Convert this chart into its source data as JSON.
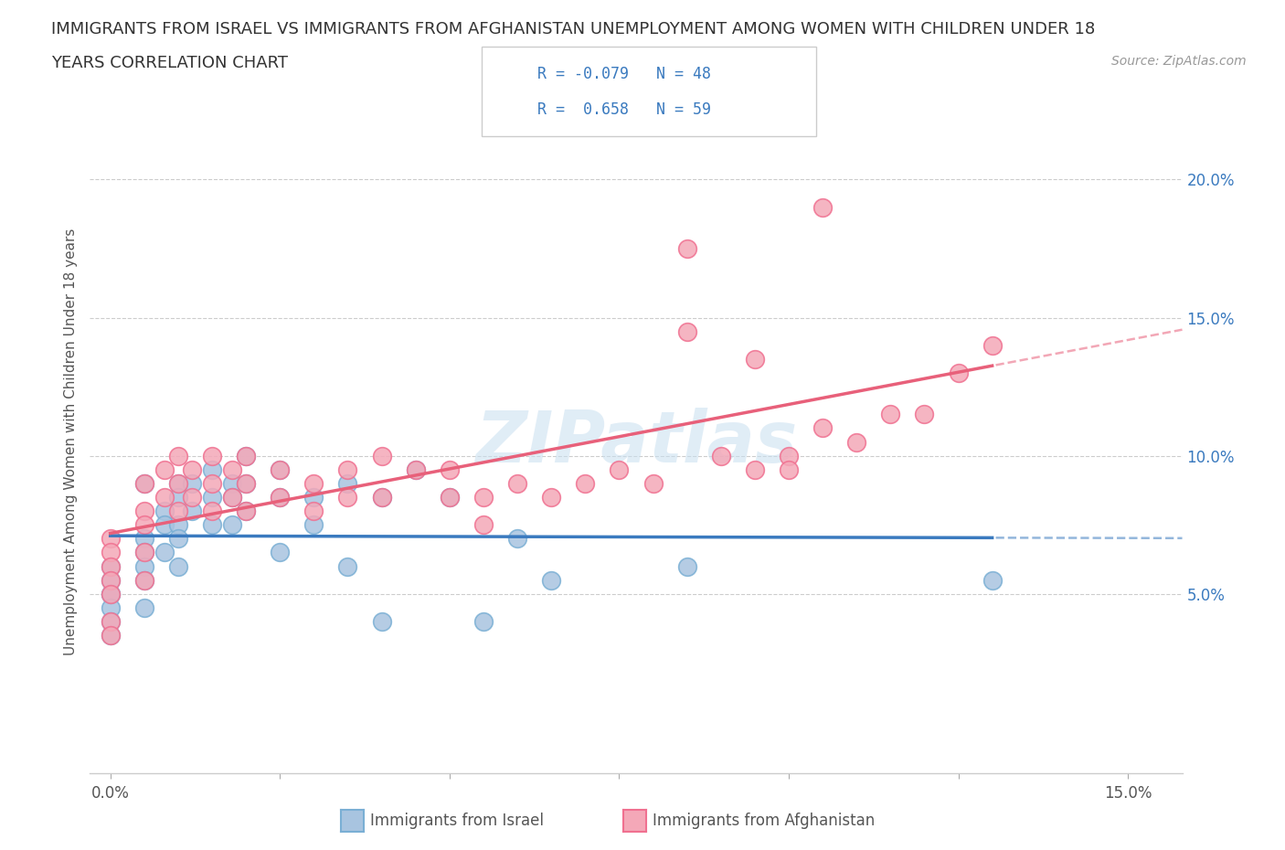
{
  "title_line1": "IMMIGRANTS FROM ISRAEL VS IMMIGRANTS FROM AFGHANISTAN UNEMPLOYMENT AMONG WOMEN WITH CHILDREN UNDER 18",
  "title_line2": "YEARS CORRELATION CHART",
  "source": "Source: ZipAtlas.com",
  "ylabel": "Unemployment Among Women with Children Under 18 years",
  "y_ticks_right": [
    0.05,
    0.1,
    0.15,
    0.2
  ],
  "y_tick_labels_right": [
    "5.0%",
    "10.0%",
    "15.0%",
    "20.0%"
  ],
  "xlim": [
    -0.003,
    0.158
  ],
  "ylim": [
    -0.015,
    0.225
  ],
  "israel_color": "#a8c4e0",
  "afghanistan_color": "#f4a8b8",
  "israel_edge": "#7aafd4",
  "afghanistan_edge": "#f07090",
  "regression_israel_color": "#3a7abf",
  "regression_afghanistan_color": "#e8607a",
  "legend_R_israel": "-0.079",
  "legend_N_israel": "48",
  "legend_R_afghanistan": "0.658",
  "legend_N_afghanistan": "59",
  "watermark": "ZIPatlas",
  "israel_x": [
    0.0,
    0.0,
    0.0,
    0.0,
    0.0,
    0.0,
    0.0,
    0.005,
    0.005,
    0.005,
    0.005,
    0.005,
    0.005,
    0.008,
    0.008,
    0.008,
    0.01,
    0.01,
    0.01,
    0.01,
    0.01,
    0.012,
    0.012,
    0.015,
    0.015,
    0.015,
    0.018,
    0.018,
    0.018,
    0.02,
    0.02,
    0.02,
    0.025,
    0.025,
    0.025,
    0.03,
    0.03,
    0.035,
    0.035,
    0.04,
    0.04,
    0.045,
    0.05,
    0.055,
    0.06,
    0.065,
    0.085,
    0.13
  ],
  "israel_y": [
    0.06,
    0.055,
    0.05,
    0.05,
    0.045,
    0.04,
    0.035,
    0.09,
    0.07,
    0.065,
    0.06,
    0.055,
    0.045,
    0.08,
    0.075,
    0.065,
    0.09,
    0.085,
    0.075,
    0.07,
    0.06,
    0.09,
    0.08,
    0.095,
    0.085,
    0.075,
    0.09,
    0.085,
    0.075,
    0.1,
    0.09,
    0.08,
    0.095,
    0.085,
    0.065,
    0.085,
    0.075,
    0.09,
    0.06,
    0.085,
    0.04,
    0.095,
    0.085,
    0.04,
    0.07,
    0.055,
    0.06,
    0.055
  ],
  "afghanistan_x": [
    0.0,
    0.0,
    0.0,
    0.0,
    0.0,
    0.0,
    0.0,
    0.005,
    0.005,
    0.005,
    0.005,
    0.005,
    0.008,
    0.008,
    0.01,
    0.01,
    0.01,
    0.012,
    0.012,
    0.015,
    0.015,
    0.015,
    0.018,
    0.018,
    0.02,
    0.02,
    0.02,
    0.025,
    0.025,
    0.03,
    0.03,
    0.035,
    0.035,
    0.04,
    0.04,
    0.045,
    0.05,
    0.05,
    0.055,
    0.055,
    0.06,
    0.065,
    0.07,
    0.075,
    0.08,
    0.085,
    0.09,
    0.095,
    0.1,
    0.1,
    0.105,
    0.11,
    0.115,
    0.12,
    0.125,
    0.13,
    0.085,
    0.095,
    0.105
  ],
  "afghanistan_y": [
    0.07,
    0.065,
    0.06,
    0.055,
    0.05,
    0.04,
    0.035,
    0.09,
    0.08,
    0.075,
    0.065,
    0.055,
    0.095,
    0.085,
    0.1,
    0.09,
    0.08,
    0.095,
    0.085,
    0.1,
    0.09,
    0.08,
    0.095,
    0.085,
    0.1,
    0.09,
    0.08,
    0.095,
    0.085,
    0.09,
    0.08,
    0.095,
    0.085,
    0.1,
    0.085,
    0.095,
    0.095,
    0.085,
    0.085,
    0.075,
    0.09,
    0.085,
    0.09,
    0.095,
    0.09,
    0.145,
    0.1,
    0.095,
    0.1,
    0.095,
    0.11,
    0.105,
    0.115,
    0.115,
    0.13,
    0.14,
    0.175,
    0.135,
    0.19
  ]
}
